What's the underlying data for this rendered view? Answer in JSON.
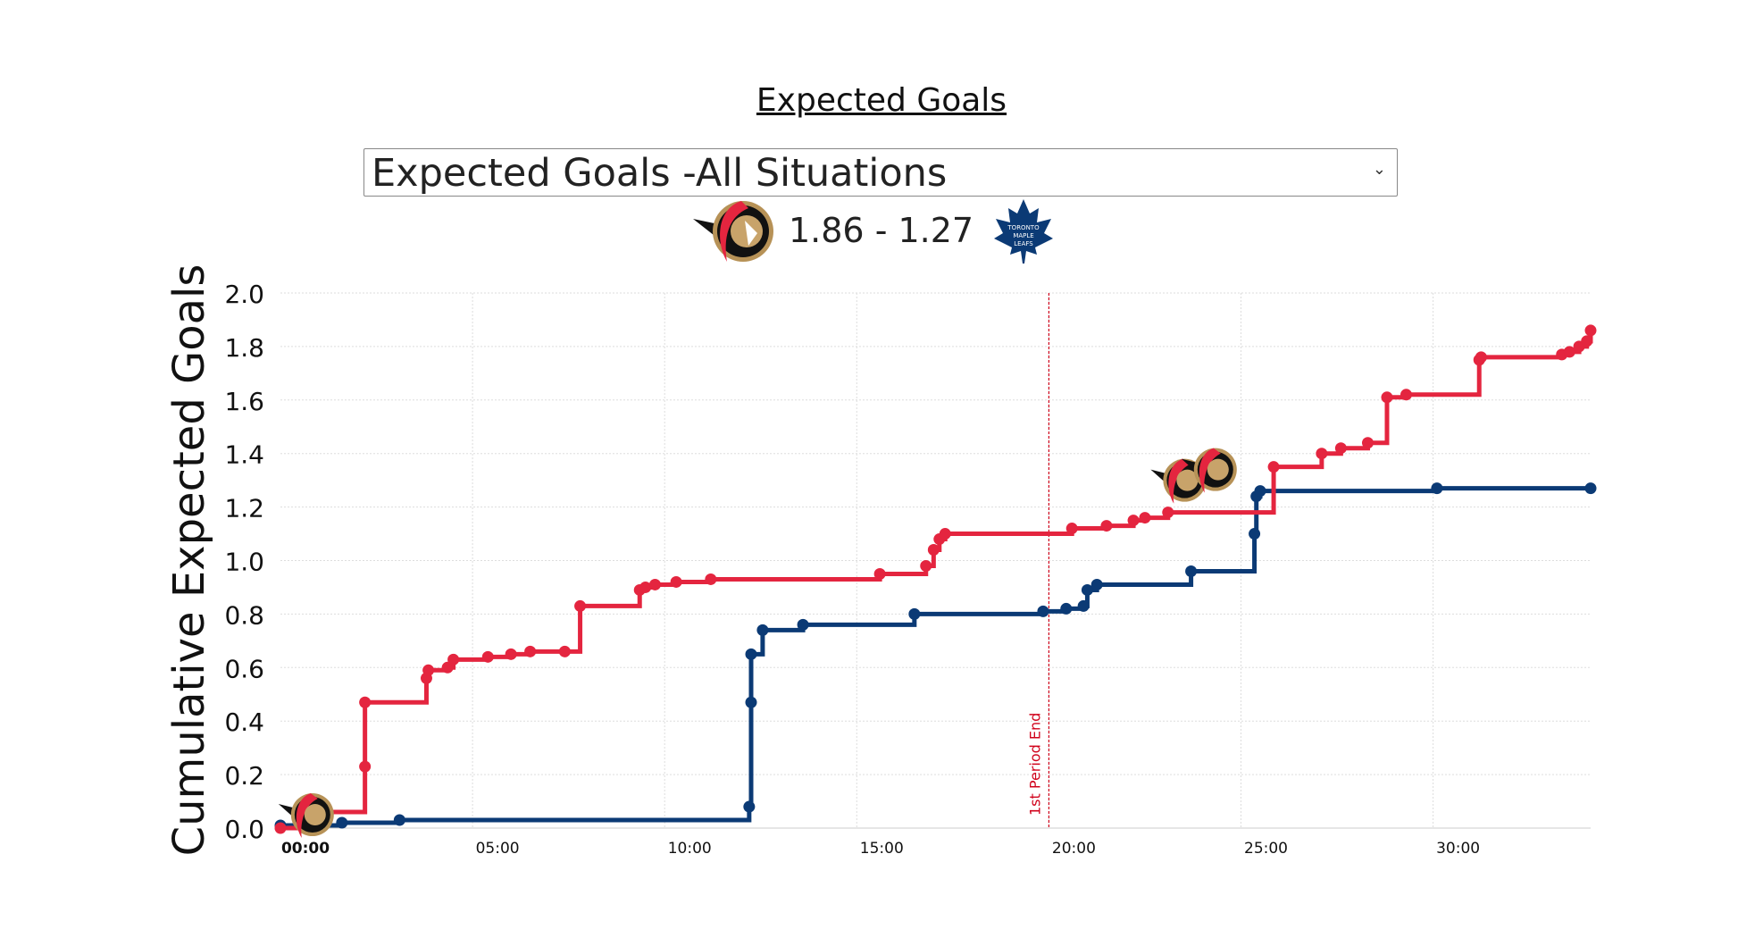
{
  "header": {
    "title": "Expected Goals",
    "selected_option": "Expected Goals -All Situations",
    "score": "1.86 - 1.27",
    "home_logo_icon": "ottawa-senators-logo",
    "away_logo_icon": "toronto-maple-leafs-logo",
    "away_logo_text": "TORONTO MAPLE LEAFS"
  },
  "chart_data": {
    "type": "line",
    "step": true,
    "title": "Expected Goals",
    "xlabel": "",
    "ylabel": "Cumulative Expected Goals",
    "xlim_minutes": [
      0,
      34.1
    ],
    "ylim": [
      0,
      2.0
    ],
    "yticks": [
      "0.0",
      "0.2",
      "0.4",
      "0.6",
      "0.8",
      "1.0",
      "1.2",
      "1.4",
      "1.6",
      "1.8",
      "2.0"
    ],
    "xticks": [
      {
        "minute": 0,
        "label": "00:00"
      },
      {
        "minute": 5,
        "label": "05:00"
      },
      {
        "minute": 10,
        "label": "10:00"
      },
      {
        "minute": 15,
        "label": "15:00"
      },
      {
        "minute": 20,
        "label": "20:00"
      },
      {
        "minute": 25,
        "label": "25:00"
      },
      {
        "minute": 30,
        "label": "30:00"
      }
    ],
    "grid": true,
    "annotations": [
      {
        "minute": 20,
        "label": "1st Period End",
        "color": "#d0021b"
      }
    ],
    "series": [
      {
        "name": "Ottawa Senators",
        "color": "#e4253f",
        "points": [
          [
            0,
            0
          ],
          [
            0.6,
            0.06
          ],
          [
            2.2,
            0.23
          ],
          [
            2.2,
            0.47
          ],
          [
            3.8,
            0.56
          ],
          [
            3.85,
            0.59
          ],
          [
            4.35,
            0.6
          ],
          [
            4.5,
            0.63
          ],
          [
            5.4,
            0.64
          ],
          [
            6.0,
            0.65
          ],
          [
            6.5,
            0.66
          ],
          [
            7.4,
            0.66
          ],
          [
            7.8,
            0.83
          ],
          [
            9.35,
            0.89
          ],
          [
            9.5,
            0.9
          ],
          [
            9.75,
            0.91
          ],
          [
            10.3,
            0.92
          ],
          [
            11.2,
            0.93
          ],
          [
            15.6,
            0.95
          ],
          [
            16.8,
            0.98
          ],
          [
            17.0,
            1.04
          ],
          [
            17.15,
            1.08
          ],
          [
            17.3,
            1.1
          ],
          [
            20.6,
            1.12
          ],
          [
            21.5,
            1.13
          ],
          [
            22.2,
            1.15
          ],
          [
            22.5,
            1.16
          ],
          [
            23.1,
            1.18
          ],
          [
            25.85,
            1.35
          ],
          [
            27.1,
            1.4
          ],
          [
            27.6,
            1.42
          ],
          [
            28.3,
            1.44
          ],
          [
            28.8,
            1.61
          ],
          [
            29.3,
            1.62
          ],
          [
            31.2,
            1.75
          ],
          [
            31.25,
            1.76
          ],
          [
            33.35,
            1.77
          ],
          [
            33.55,
            1.78
          ],
          [
            33.8,
            1.8
          ],
          [
            34.0,
            1.82
          ],
          [
            34.1,
            1.86
          ]
        ],
        "goals": [
          [
            0.6,
            0.05
          ],
          [
            23.3,
            1.3
          ],
          [
            24.1,
            1.34
          ]
        ]
      },
      {
        "name": "Toronto Maple Leafs",
        "color": "#0b3a75",
        "points": [
          [
            0,
            0.01
          ],
          [
            1.6,
            0.02
          ],
          [
            3.1,
            0.03
          ],
          [
            12.2,
            0.08
          ],
          [
            12.25,
            0.47
          ],
          [
            12.25,
            0.65
          ],
          [
            12.55,
            0.74
          ],
          [
            13.6,
            0.76
          ],
          [
            16.5,
            0.8
          ],
          [
            19.85,
            0.81
          ],
          [
            20.45,
            0.82
          ],
          [
            20.9,
            0.83
          ],
          [
            21.0,
            0.89
          ],
          [
            21.25,
            0.91
          ],
          [
            23.7,
            0.96
          ],
          [
            25.35,
            1.1
          ],
          [
            25.4,
            1.24
          ],
          [
            25.5,
            1.26
          ],
          [
            30.1,
            1.27
          ],
          [
            34.1,
            1.27
          ]
        ],
        "goals": []
      }
    ]
  }
}
